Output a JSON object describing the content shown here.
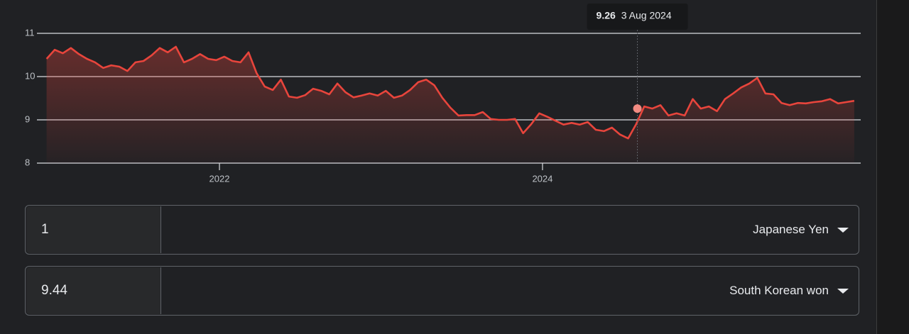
{
  "chart_data": {
    "type": "line",
    "x": [
      2020.93,
      2020.98,
      2021.03,
      2021.08,
      2021.13,
      2021.18,
      2021.23,
      2021.28,
      2021.33,
      2021.38,
      2021.43,
      2021.48,
      2021.53,
      2021.58,
      2021.63,
      2021.68,
      2021.73,
      2021.78,
      2021.83,
      2021.88,
      2021.93,
      2021.98,
      2022.03,
      2022.08,
      2022.13,
      2022.18,
      2022.23,
      2022.28,
      2022.33,
      2022.38,
      2022.43,
      2022.48,
      2022.53,
      2022.58,
      2022.63,
      2022.68,
      2022.73,
      2022.78,
      2022.83,
      2022.88,
      2022.93,
      2022.98,
      2023.03,
      2023.08,
      2023.13,
      2023.18,
      2023.23,
      2023.28,
      2023.33,
      2023.38,
      2023.43,
      2023.48,
      2023.53,
      2023.58,
      2023.63,
      2023.68,
      2023.73,
      2023.78,
      2023.83,
      2023.88,
      2023.93,
      2023.98,
      2024.03,
      2024.08,
      2024.13,
      2024.18,
      2024.23,
      2024.28,
      2024.33,
      2024.38,
      2024.43,
      2024.48,
      2024.53,
      2024.58,
      2024.63,
      2024.68,
      2024.73,
      2024.78,
      2024.83,
      2024.88,
      2024.93,
      2024.98,
      2025.03,
      2025.08,
      2025.13,
      2025.18,
      2025.23,
      2025.28,
      2025.33,
      2025.38,
      2025.43,
      2025.48,
      2025.53,
      2025.58,
      2025.63,
      2025.68,
      2025.73,
      2025.78,
      2025.83,
      2025.88,
      2025.93
    ],
    "series": [
      {
        "color": "#e8453c",
        "values": [
          10.41,
          10.62,
          10.54,
          10.66,
          10.52,
          10.41,
          10.33,
          10.2,
          10.26,
          10.23,
          10.13,
          10.33,
          10.36,
          10.49,
          10.66,
          10.56,
          10.69,
          10.33,
          10.41,
          10.52,
          10.41,
          10.38,
          10.46,
          10.36,
          10.33,
          10.56,
          10.08,
          9.77,
          9.69,
          9.93,
          9.54,
          9.51,
          9.57,
          9.72,
          9.67,
          9.59,
          9.84,
          9.64,
          9.52,
          9.56,
          9.61,
          9.56,
          9.67,
          9.51,
          9.56,
          9.69,
          9.87,
          9.93,
          9.8,
          9.51,
          9.28,
          9.1,
          9.11,
          9.11,
          9.18,
          9.02,
          9.0,
          9.0,
          9.02,
          8.69,
          8.9,
          9.15,
          9.07,
          8.98,
          8.89,
          8.93,
          8.89,
          8.95,
          8.77,
          8.74,
          8.82,
          8.66,
          8.57,
          8.9,
          9.31,
          9.26,
          9.34,
          9.1,
          9.15,
          9.1,
          9.48,
          9.26,
          9.31,
          9.2,
          9.48,
          9.61,
          9.75,
          9.84,
          9.97,
          9.61,
          9.59,
          9.39,
          9.34,
          9.39,
          9.38,
          9.41,
          9.43,
          9.48,
          9.38,
          9.41,
          9.44
        ]
      }
    ],
    "xlim": [
      2020.87,
      2025.97
    ],
    "xticks": [
      2022,
      2024
    ],
    "ylim": [
      8,
      11
    ],
    "yticks": [
      8,
      9,
      10,
      11
    ],
    "grid": true,
    "tooltip": {
      "value": 9.26,
      "label": "3 Aug 2024"
    }
  },
  "converter": {
    "from": {
      "amount": "1",
      "currency": "Japanese Yen"
    },
    "to": {
      "amount": "9.44",
      "currency": "South Korean won"
    }
  }
}
